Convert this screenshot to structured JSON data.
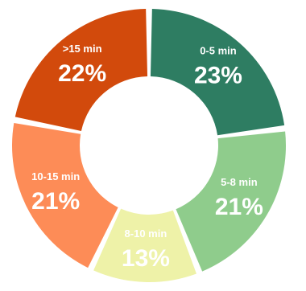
{
  "chart_data": {
    "type": "pie",
    "style": "donut",
    "title": "",
    "slices": [
      {
        "label": "0-5 min",
        "value_text": "23%",
        "value": 23,
        "color": "#2e7d62"
      },
      {
        "label": "5-8 min",
        "value_text": "21%",
        "value": 21,
        "color": "#8fcc8c"
      },
      {
        "label": "8-10 min",
        "value_text": "13%",
        "value": 13,
        "color": "#eef2a8"
      },
      {
        "label": "10-15 min",
        "value_text": "21%",
        "value": 21,
        "color": "#fd8c57"
      },
      {
        "label": ">15 min",
        "value_text": "22%",
        "value": 22,
        "color": "#d24a0c"
      }
    ]
  }
}
